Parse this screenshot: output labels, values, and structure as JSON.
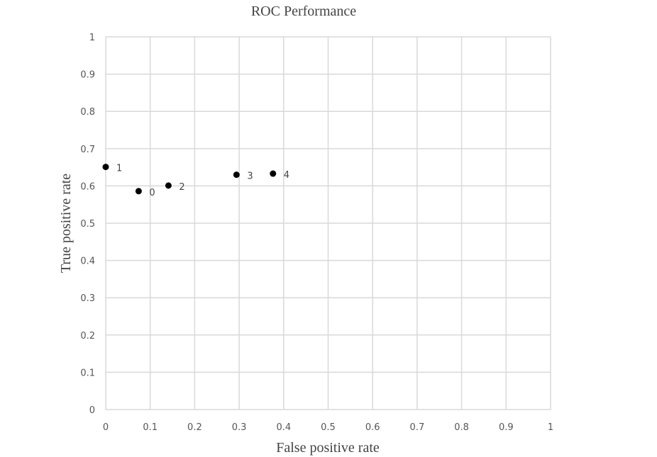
{
  "chart_data": {
    "type": "scatter",
    "title": "ROC Performance",
    "xlabel": "False positive rate",
    "ylabel": "True positive rate",
    "xlim": [
      0,
      1
    ],
    "ylim": [
      0,
      1
    ],
    "grid": true,
    "xticks": [
      "0",
      "0.1",
      "0.2",
      "0.3",
      "0.4",
      "0.5",
      "0.6",
      "0.7",
      "0.8",
      "0.9",
      "1"
    ],
    "yticks": [
      "0",
      "0.1",
      "0.2",
      "0.3",
      "0.4",
      "0.5",
      "0.6",
      "0.7",
      "0.8",
      "0.9",
      "1"
    ],
    "points": [
      {
        "label": "0",
        "x": 0.074,
        "y": 0.586
      },
      {
        "label": "1",
        "x": 0.0,
        "y": 0.651
      },
      {
        "label": "2",
        "x": 0.141,
        "y": 0.601
      },
      {
        "label": "3",
        "x": 0.294,
        "y": 0.63
      },
      {
        "label": "4",
        "x": 0.376,
        "y": 0.633
      }
    ],
    "marker_color": "#000000"
  }
}
